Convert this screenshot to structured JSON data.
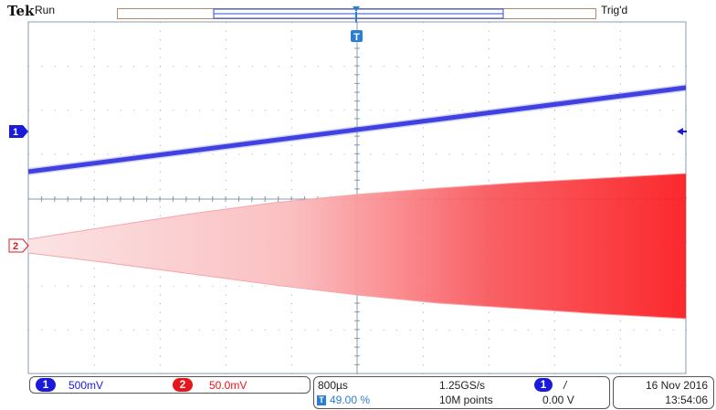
{
  "header": {
    "brand": "Tek",
    "acq_state": "Run",
    "trigger_state": "Trig'd"
  },
  "colors": {
    "ch1": "#1a1adb",
    "ch2": "#e8161b",
    "grid": "#8a9bb0",
    "trigger": "#2a7fd4"
  },
  "markers": {
    "ch1": "1",
    "ch2": "2",
    "trigger": "T"
  },
  "ch1": {
    "label": "1",
    "scale": "500mV"
  },
  "ch2": {
    "label": "2",
    "scale": "50.0mV"
  },
  "timebase": {
    "scale": "800µs",
    "trigger_position": "49.00 %",
    "trigger_icon": "T",
    "sample_rate": "1.25GS/s",
    "record_length": "10M points"
  },
  "trigger": {
    "source": "1",
    "slope": "/",
    "level": "0.00 V"
  },
  "datetime": {
    "date": "16 Nov 2016",
    "time": "13:54:06"
  }
}
